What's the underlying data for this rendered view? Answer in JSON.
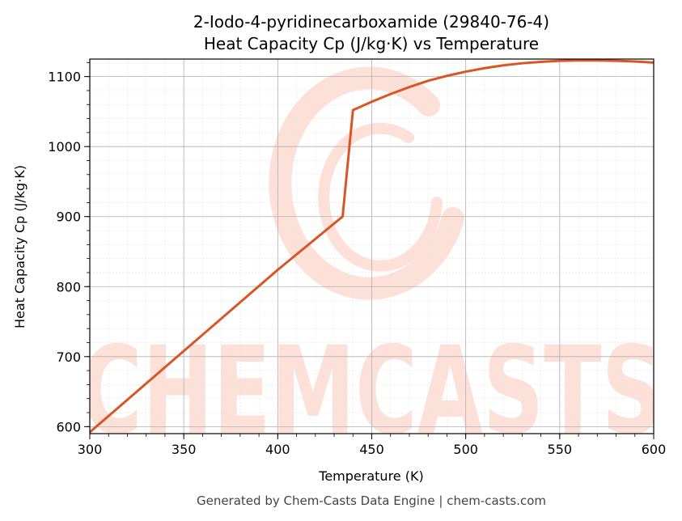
{
  "chart_data": {
    "type": "line",
    "title": "2-Iodo-4-pyridinecarboxamide (29840-76-4)",
    "subtitle": "Heat Capacity Cp (J/kg·K) vs Temperature",
    "xlabel": "Temperature (K)",
    "ylabel": "Heat Capacity Cp (J/kg·K)",
    "xlim": [
      300,
      600
    ],
    "ylim": [
      590,
      1125
    ],
    "xticks": [
      300,
      350,
      400,
      450,
      500,
      550,
      600
    ],
    "yticks": [
      600,
      700,
      800,
      900,
      1000,
      1100
    ],
    "grid": true,
    "series": [
      {
        "color": "#d95525",
        "x": [
          300,
          350,
          400,
          434.5,
          440,
          450,
          460,
          470,
          480,
          490,
          500,
          510,
          520,
          530,
          540,
          550,
          560,
          570,
          580,
          590,
          600
        ],
        "y": [
          592,
          708,
          824,
          900,
          1052,
          1064,
          1075,
          1085,
          1094,
          1101,
          1107,
          1112,
          1116,
          1119,
          1121,
          1122.5,
          1123,
          1123,
          1122.5,
          1121.5,
          1120
        ]
      }
    ]
  },
  "watermark": {
    "text": "CHEMCASTS",
    "color": "#fde0d8"
  },
  "footer": "Generated by Chem-Casts Data Engine | chem-casts.com"
}
